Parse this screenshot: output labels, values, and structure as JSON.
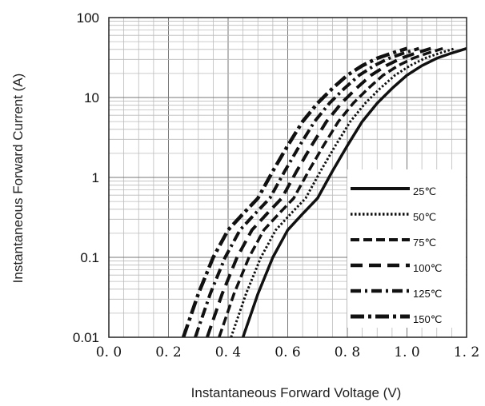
{
  "chart_data": {
    "type": "line",
    "xlabel": "Instantaneous Forward Voltage (V)",
    "ylabel": "Instantaneous Forward Current (A)",
    "xlim": [
      0,
      1.2
    ],
    "ylim": [
      0.01,
      100
    ],
    "y_scale": "log",
    "grid": true,
    "legend_position": "bottom-right",
    "x_ticks": [
      "0. 0",
      "0. 2",
      "0. 4",
      "0. 6",
      "0. 8",
      "1. 0",
      "1. 2"
    ],
    "y_ticks": [
      "100",
      "10",
      "1",
      "0.1",
      "0.01"
    ],
    "series": [
      {
        "name": "25℃",
        "style": "solid",
        "width": 3.5,
        "x": [
          0.45,
          0.5,
          0.55,
          0.6,
          0.65,
          0.7,
          0.75,
          0.8,
          0.85,
          0.9,
          0.95,
          1.0,
          1.05,
          1.1,
          1.15,
          1.2
        ],
        "y": [
          0.01,
          0.035,
          0.1,
          0.22,
          0.35,
          0.55,
          1.2,
          2.5,
          5,
          8.5,
          13,
          19,
          25,
          31,
          36,
          41
        ]
      },
      {
        "name": "50℃",
        "style": "dotted",
        "width": 3,
        "x": [
          0.41,
          0.46,
          0.51,
          0.56,
          0.61,
          0.66,
          0.71,
          0.76,
          0.81,
          0.86,
          0.91,
          0.96,
          1.01,
          1.06,
          1.11,
          1.16
        ],
        "y": [
          0.01,
          0.035,
          0.1,
          0.22,
          0.35,
          0.55,
          1.2,
          2.5,
          5,
          8.5,
          13,
          19,
          25,
          31,
          36,
          41
        ]
      },
      {
        "name": "75℃",
        "style": "dash",
        "width": 3.5,
        "x": [
          0.37,
          0.42,
          0.47,
          0.52,
          0.57,
          0.62,
          0.67,
          0.72,
          0.77,
          0.82,
          0.87,
          0.92,
          0.97,
          1.02,
          1.07,
          1.12
        ],
        "y": [
          0.01,
          0.035,
          0.1,
          0.22,
          0.35,
          0.55,
          1.2,
          2.5,
          5,
          8.5,
          13,
          19,
          25,
          31,
          36,
          41
        ]
      },
      {
        "name": "100℃",
        "style": "longdash",
        "width": 4,
        "x": [
          0.33,
          0.38,
          0.43,
          0.48,
          0.53,
          0.58,
          0.63,
          0.68,
          0.73,
          0.78,
          0.83,
          0.88,
          0.93,
          0.98,
          1.03,
          1.08
        ],
        "y": [
          0.01,
          0.035,
          0.1,
          0.22,
          0.35,
          0.55,
          1.2,
          2.5,
          5,
          8.5,
          13,
          19,
          25,
          31,
          36,
          41
        ]
      },
      {
        "name": "125℃",
        "style": "dashdot",
        "width": 4,
        "x": [
          0.29,
          0.34,
          0.39,
          0.44,
          0.49,
          0.54,
          0.59,
          0.64,
          0.69,
          0.74,
          0.79,
          0.84,
          0.89,
          0.94,
          0.99,
          1.04
        ],
        "y": [
          0.01,
          0.035,
          0.1,
          0.22,
          0.35,
          0.55,
          1.2,
          2.5,
          5,
          8.5,
          13,
          19,
          25,
          31,
          36,
          41
        ]
      },
      {
        "name": "150℃",
        "style": "longdashdot",
        "width": 4.5,
        "x": [
          0.25,
          0.3,
          0.35,
          0.4,
          0.45,
          0.5,
          0.55,
          0.6,
          0.65,
          0.7,
          0.75,
          0.8,
          0.85,
          0.9,
          0.95,
          1.0
        ],
        "y": [
          0.01,
          0.035,
          0.1,
          0.22,
          0.35,
          0.55,
          1.2,
          2.5,
          5,
          8.5,
          13,
          19,
          25,
          31,
          36,
          41
        ]
      }
    ]
  }
}
